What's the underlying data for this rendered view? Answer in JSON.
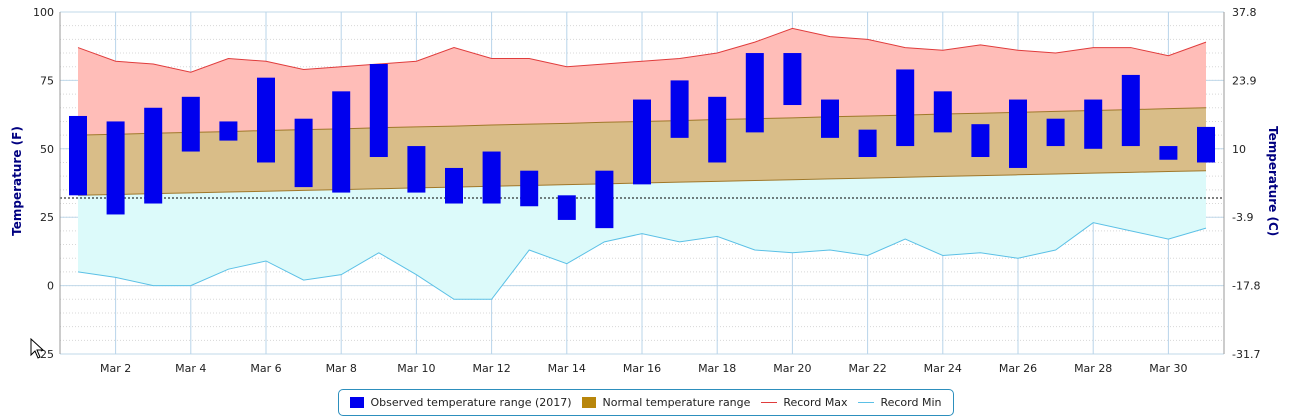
{
  "chart_data": {
    "type": "floating-bar-area",
    "y_left": {
      "label": "Temperature (F)",
      "ticks": [
        "100",
        "75",
        "50",
        "25",
        "0",
        "-25"
      ],
      "ylim": [
        -25,
        100
      ]
    },
    "y_right": {
      "label": "Temperature (C)",
      "ticks": [
        "37.8",
        "23.9",
        "10",
        "-3.9",
        "-17.8",
        "-31.7"
      ]
    },
    "x_ticks": [
      "Mar 2",
      "Mar 4",
      "Mar 6",
      "Mar 8",
      "Mar 10",
      "Mar 12",
      "Mar 14",
      "Mar 16",
      "Mar 18",
      "Mar 20",
      "Mar 22",
      "Mar 24",
      "Mar 26",
      "Mar 28",
      "Mar 30"
    ],
    "days": [
      1,
      2,
      3,
      4,
      5,
      6,
      7,
      8,
      9,
      10,
      11,
      12,
      13,
      14,
      15,
      16,
      17,
      18,
      19,
      20,
      21,
      22,
      23,
      24,
      25,
      26,
      27,
      28,
      29,
      30,
      31
    ],
    "freezing_line": 32,
    "series": [
      {
        "name": "Observed temperature range (2017)",
        "color": "#0000ee",
        "low": [
          33,
          26,
          30,
          49,
          53,
          45,
          36,
          34,
          47,
          34,
          30,
          30,
          29,
          24,
          21,
          37,
          54,
          45,
          56,
          66,
          54,
          47,
          51,
          56,
          47,
          43,
          51,
          50,
          51,
          46,
          45
        ],
        "high": [
          62,
          60,
          65,
          69,
          60,
          76,
          61,
          71,
          81,
          51,
          43,
          49,
          42,
          33,
          42,
          68,
          75,
          69,
          85,
          85,
          68,
          57,
          79,
          71,
          59,
          68,
          61,
          68,
          77,
          51,
          58
        ]
      },
      {
        "name": "Normal temperature range",
        "color": "#b8860b",
        "low": [
          33,
          33.3,
          33.6,
          33.9,
          34.2,
          34.5,
          34.8,
          35.1,
          35.4,
          35.7,
          36,
          36.3,
          36.6,
          36.9,
          37.2,
          37.5,
          37.8,
          38.1,
          38.4,
          38.7,
          39,
          39.3,
          39.6,
          39.9,
          40.2,
          40.5,
          40.8,
          41.1,
          41.4,
          41.7,
          42
        ],
        "high": [
          55,
          55.3,
          55.7,
          56,
          56.3,
          56.7,
          57,
          57.3,
          57.7,
          58,
          58.3,
          58.7,
          59,
          59.3,
          59.7,
          60,
          60.3,
          60.7,
          61,
          61.3,
          61.7,
          62,
          62.3,
          62.7,
          63,
          63.3,
          63.7,
          64,
          64.3,
          64.7,
          65
        ]
      },
      {
        "name": "Record Max",
        "color": "#e03c3c",
        "values": [
          87,
          82,
          81,
          78,
          83,
          82,
          79,
          80,
          81,
          82,
          87,
          83,
          83,
          80,
          81,
          82,
          83,
          85,
          89,
          94,
          91,
          90,
          87,
          86,
          88,
          86,
          85,
          87,
          87,
          84,
          89
        ]
      },
      {
        "name": "Record Min",
        "color": "#5bc0e6",
        "values": [
          5,
          3,
          0,
          0,
          6,
          9,
          2,
          4,
          12,
          4,
          -5,
          -5,
          13,
          8,
          16,
          19,
          16,
          18,
          13,
          12,
          13,
          11,
          17,
          11,
          12,
          10,
          13,
          23,
          20,
          17,
          21
        ]
      }
    ],
    "legend": {
      "position": "bottom-center",
      "items": [
        "Observed temperature range (2017)",
        "Normal temperature range",
        "Record Max",
        "Record Min"
      ]
    },
    "grid": true
  }
}
